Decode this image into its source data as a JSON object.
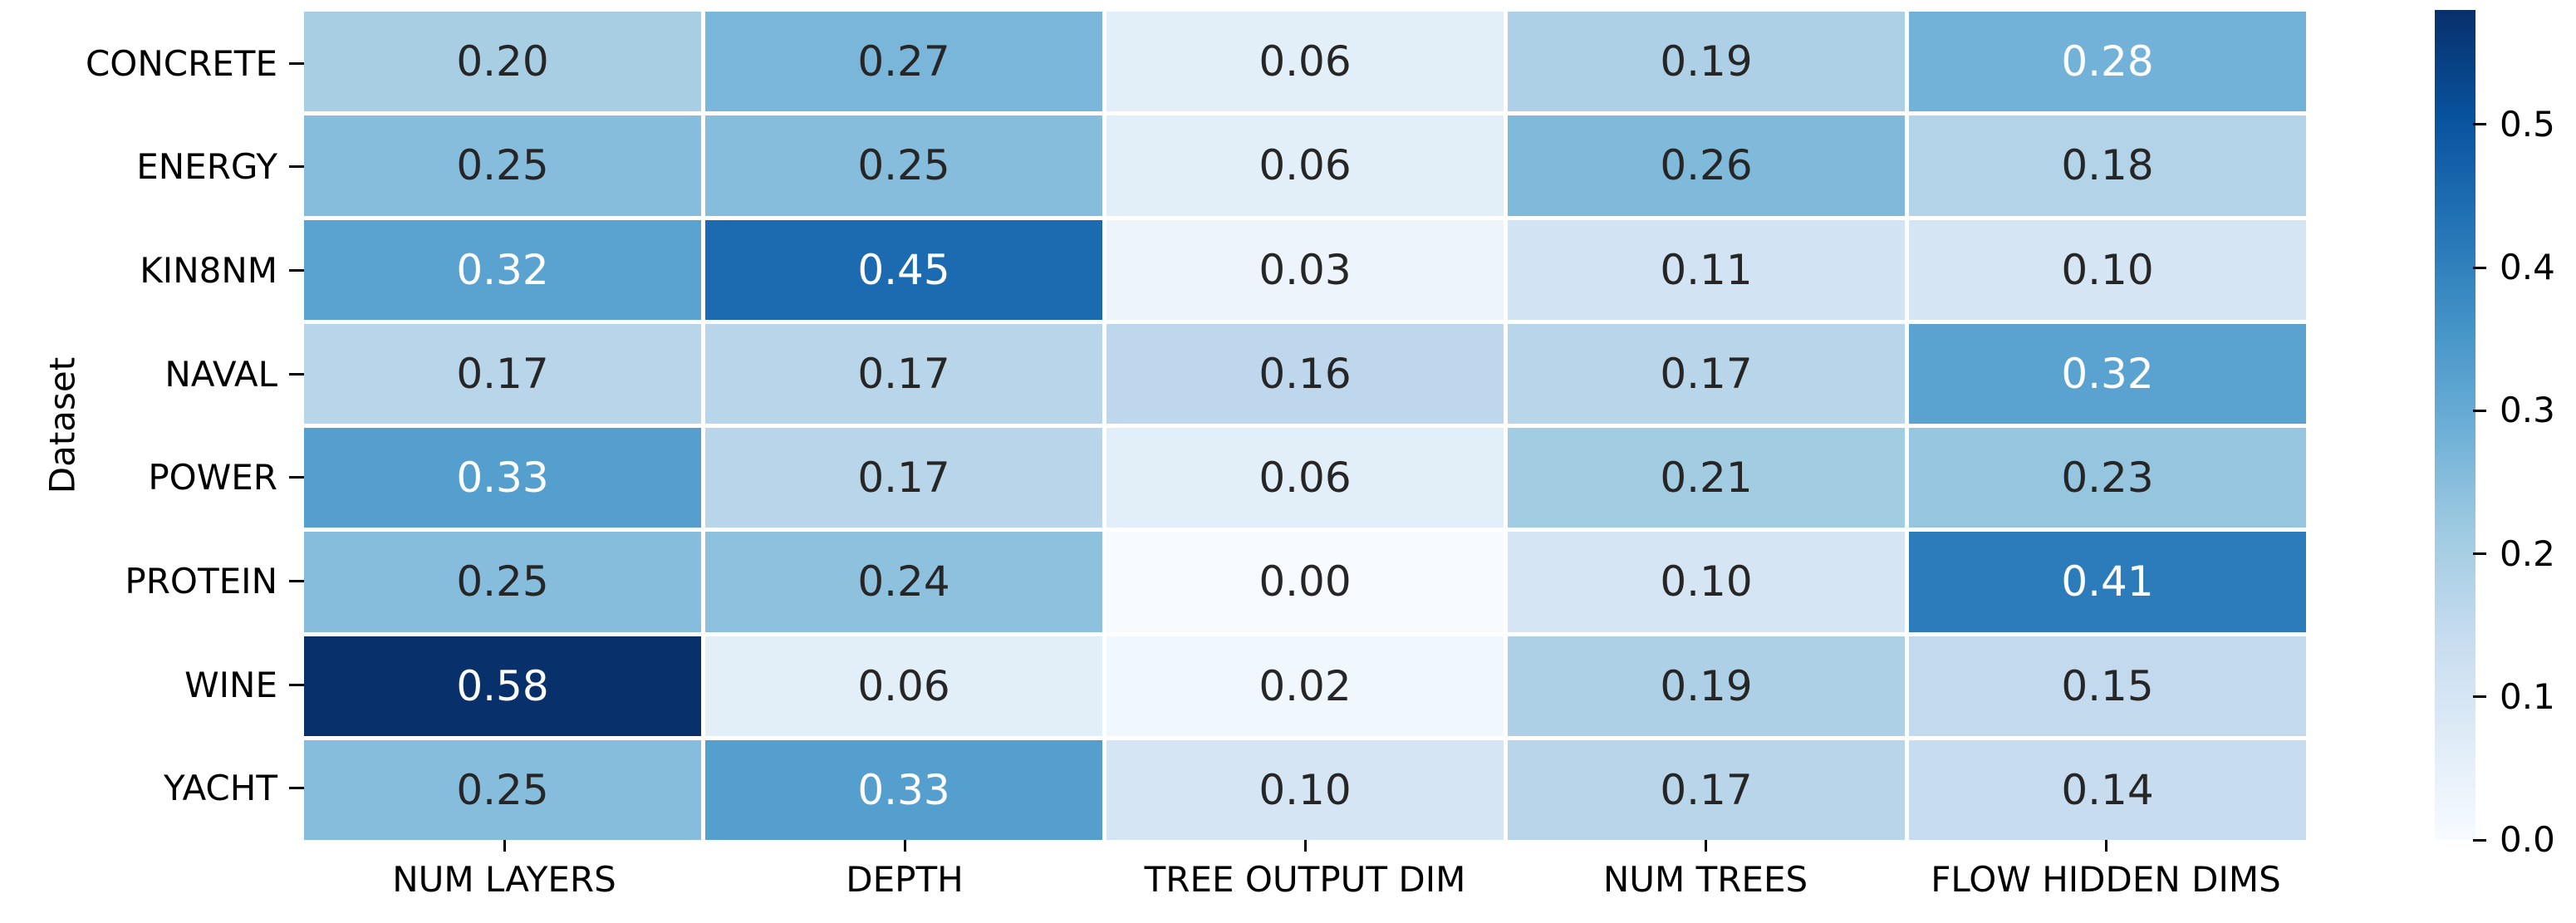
{
  "figure": {
    "background": "#ffffff"
  },
  "chart_data": {
    "type": "heatmap",
    "ylabel": "Dataset",
    "rows": [
      "CONCRETE",
      "ENERGY",
      "KIN8NM",
      "NAVAL",
      "POWER",
      "PROTEIN",
      "WINE",
      "YACHT"
    ],
    "columns": [
      "NUM LAYERS",
      "DEPTH",
      "TREE OUTPUT DIM",
      "NUM TREES",
      "FLOW HIDDEN DIMS"
    ],
    "values": [
      [
        0.2,
        0.27,
        0.06,
        0.19,
        0.28
      ],
      [
        0.25,
        0.25,
        0.06,
        0.26,
        0.18
      ],
      [
        0.32,
        0.45,
        0.03,
        0.11,
        0.1
      ],
      [
        0.17,
        0.17,
        0.16,
        0.17,
        0.32
      ],
      [
        0.33,
        0.17,
        0.06,
        0.21,
        0.23
      ],
      [
        0.25,
        0.24,
        0.0,
        0.1,
        0.41
      ],
      [
        0.58,
        0.06,
        0.02,
        0.19,
        0.15
      ],
      [
        0.25,
        0.33,
        0.1,
        0.17,
        0.14
      ]
    ],
    "vmin": 0.0,
    "vmax": 0.58,
    "grid": "white cell separators",
    "legend_position": "colorbar right",
    "colormap": {
      "name": "Blues",
      "anchors": [
        "#f7fbff",
        "#deebf7",
        "#c6dbef",
        "#9ecae1",
        "#6baed6",
        "#4292c6",
        "#2171b5",
        "#08519c",
        "#08306b"
      ]
    },
    "colorbar": {
      "tick_labels": [
        "0.0",
        "0.1",
        "0.2",
        "0.3",
        "0.4",
        "0.5"
      ],
      "tick_values": [
        0.0,
        0.1,
        0.2,
        0.3,
        0.4,
        0.5
      ]
    },
    "annotation_colors": {
      "dark": "#262626",
      "light": "#ffffff"
    },
    "tick_color": "#000000"
  }
}
